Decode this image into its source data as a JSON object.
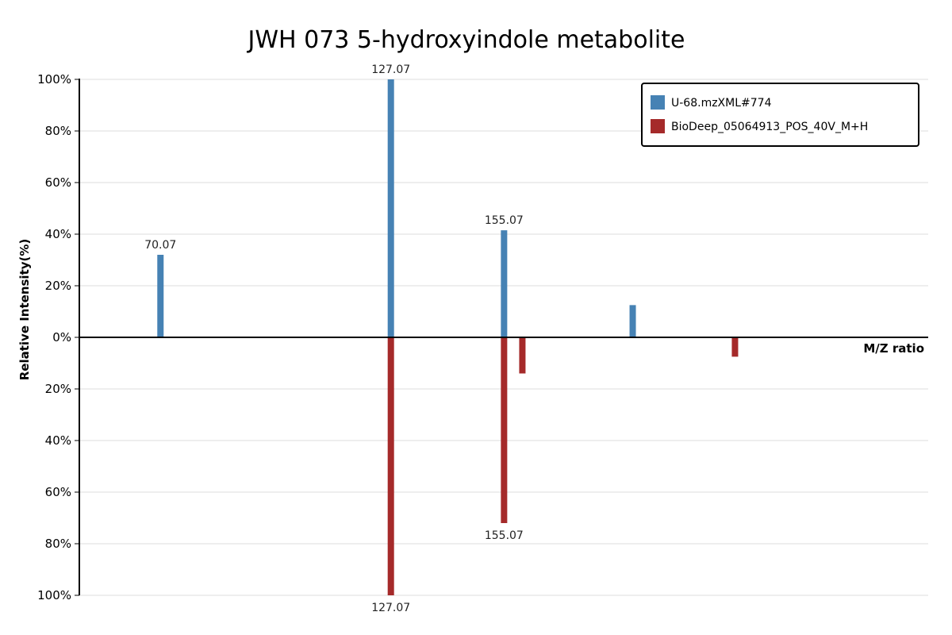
{
  "chart_data": {
    "type": "bar",
    "title": "JWH 073 5-hydroxyindole metabolite",
    "xlabel": "M/Z ratio",
    "ylabel": "Relative Intensity(%)",
    "y_ticks_top": [
      "100%",
      "80%",
      "60%",
      "40%",
      "20%",
      "0%"
    ],
    "y_ticks_bottom": [
      "20%",
      "40%",
      "60%",
      "80%",
      "100%"
    ],
    "ylim": [
      -100,
      100
    ],
    "xlim": [
      50,
      260
    ],
    "grid": true,
    "legend_position": "top-right",
    "series": [
      {
        "name": "U-68.mzXML#774",
        "color": "#4682b4",
        "direction": "up",
        "peaks": [
          {
            "mz": 70.07,
            "intensity": 32,
            "label": "70.07"
          },
          {
            "mz": 127.07,
            "intensity": 100,
            "label": "127.07"
          },
          {
            "mz": 155.07,
            "intensity": 41.5,
            "label": "155.07"
          },
          {
            "mz": 186.9,
            "intensity": 12.5,
            "label": ""
          }
        ]
      },
      {
        "name": "BioDeep_05064913_POS_40V_M+H",
        "color": "#a52a2a",
        "direction": "down",
        "peaks": [
          {
            "mz": 127.07,
            "intensity": 100,
            "label": "127.07"
          },
          {
            "mz": 155.07,
            "intensity": 72,
            "label": "155.07"
          },
          {
            "mz": 159.6,
            "intensity": 14,
            "label": ""
          },
          {
            "mz": 212.2,
            "intensity": 7.5,
            "label": ""
          }
        ]
      }
    ]
  }
}
